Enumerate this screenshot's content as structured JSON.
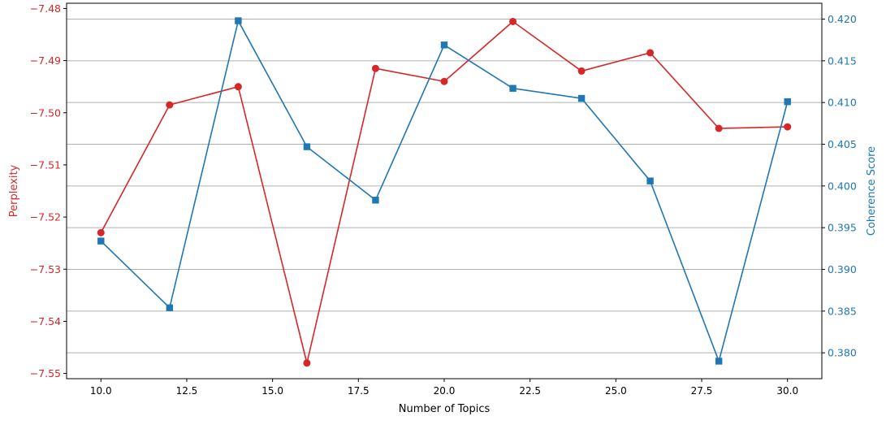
{
  "chart_data": {
    "type": "line",
    "x": [
      10,
      12,
      14,
      16,
      18,
      20,
      22,
      24,
      26,
      28,
      30
    ],
    "xlabel": "Number of Topics",
    "xlim": [
      9.0,
      31.0
    ],
    "xticks": [
      "10.0",
      "12.5",
      "15.0",
      "17.5",
      "20.0",
      "22.5",
      "25.0",
      "27.5",
      "30.0"
    ],
    "xtick_values": [
      10,
      12.5,
      15,
      17.5,
      20,
      22.5,
      25,
      27.5,
      30
    ],
    "series": [
      {
        "name": "Perplexity",
        "axis": "left",
        "color": "#d62728",
        "marker": "circle",
        "values": [
          -7.523,
          -7.4985,
          -7.495,
          -7.548,
          -7.4915,
          -7.494,
          -7.4825,
          -7.492,
          -7.4885,
          -7.503,
          -7.5027
        ]
      },
      {
        "name": "Coherence Score",
        "axis": "right",
        "color": "#1f77b4",
        "marker": "square",
        "values": [
          0.3934,
          0.3854,
          0.4198,
          0.4047,
          0.3983,
          0.4169,
          0.4117,
          0.4105,
          0.4006,
          0.379,
          0.4101
        ]
      }
    ],
    "left_axis": {
      "label": "Perplexity",
      "color": "#d62728",
      "ylim": [
        -7.551,
        -7.479
      ],
      "ticks": [
        "−7.48",
        "−7.49",
        "−7.50",
        "−7.51",
        "−7.52",
        "−7.53",
        "−7.54",
        "−7.55"
      ],
      "tick_values": [
        -7.48,
        -7.49,
        -7.5,
        -7.51,
        -7.52,
        -7.53,
        -7.54,
        -7.55
      ]
    },
    "right_axis": {
      "label": "Coherence Score",
      "color": "#1f77b4",
      "ylim": [
        0.3769,
        0.4219
      ],
      "ticks": [
        "0.420",
        "0.415",
        "0.410",
        "0.405",
        "0.400",
        "0.395",
        "0.390",
        "0.385",
        "0.380"
      ],
      "tick_values": [
        0.42,
        0.415,
        0.41,
        0.405,
        0.4,
        0.395,
        0.39,
        0.385,
        0.38
      ]
    },
    "grid": "horizontal, right axis",
    "grid_color": "#b0b0b0"
  }
}
